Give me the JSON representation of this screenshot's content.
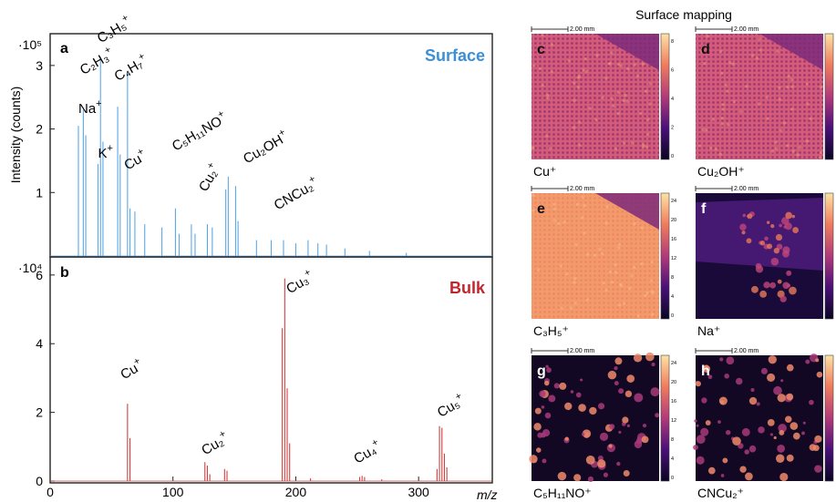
{
  "chart_data": [
    {
      "panel": "a",
      "type": "bar",
      "title": "Surface",
      "title_color": "#3a8fd6",
      "ylabel": "Intensity (counts)",
      "y_multiplier": "·10⁵",
      "ylim": [
        0,
        3.5
      ],
      "yticks": [
        1,
        2,
        3
      ],
      "xlim": [
        0,
        360
      ],
      "bar_color": "#5aa8e8",
      "peaks": [
        {
          "x": 23,
          "y": 2.05
        },
        {
          "x": 27,
          "y": 2.3
        },
        {
          "x": 29,
          "y": 1.9
        },
        {
          "x": 39,
          "y": 1.45
        },
        {
          "x": 41,
          "y": 3.1
        },
        {
          "x": 43,
          "y": 1.8
        },
        {
          "x": 55,
          "y": 2.35
        },
        {
          "x": 57,
          "y": 1.6
        },
        {
          "x": 63,
          "y": 2.9
        },
        {
          "x": 65,
          "y": 0.75
        },
        {
          "x": 69,
          "y": 0.7
        },
        {
          "x": 77,
          "y": 0.5
        },
        {
          "x": 91,
          "y": 0.45
        },
        {
          "x": 102,
          "y": 0.75
        },
        {
          "x": 105,
          "y": 0.35
        },
        {
          "x": 115,
          "y": 0.5
        },
        {
          "x": 118,
          "y": 0.35
        },
        {
          "x": 128,
          "y": 0.5
        },
        {
          "x": 132,
          "y": 0.45
        },
        {
          "x": 143,
          "y": 1.05
        },
        {
          "x": 145,
          "y": 1.25
        },
        {
          "x": 151,
          "y": 1.1
        },
        {
          "x": 153,
          "y": 0.55
        },
        {
          "x": 168,
          "y": 0.25
        },
        {
          "x": 180,
          "y": 0.25
        },
        {
          "x": 190,
          "y": 0.25
        },
        {
          "x": 200,
          "y": 0.2
        },
        {
          "x": 210,
          "y": 0.25
        },
        {
          "x": 218,
          "y": 0.2
        },
        {
          "x": 225,
          "y": 0.18
        },
        {
          "x": 240,
          "y": 0.12
        },
        {
          "x": 260,
          "y": 0.08
        },
        {
          "x": 290,
          "y": 0.05
        }
      ],
      "annotations": [
        {
          "base": "Na",
          "sub": "",
          "sup": "+",
          "x": 23,
          "y": 2.25,
          "rot": 0
        },
        {
          "base": "K",
          "sub": "",
          "sup": "+",
          "x": 39,
          "y": 1.55,
          "rot": 0
        },
        {
          "base": "C₂H₃",
          "sub": "",
          "sup": "+",
          "x": 27,
          "y": 2.85,
          "rot": -30
        },
        {
          "base": "C₃H₅",
          "sub": "",
          "sup": "+",
          "x": 41,
          "y": 3.35,
          "rot": -30
        },
        {
          "base": "C₄H₇",
          "sub": "",
          "sup": "+",
          "x": 55,
          "y": 2.75,
          "rot": -30
        },
        {
          "base": "Cu",
          "sub": "",
          "sup": "+",
          "x": 63,
          "y": 1.35,
          "rot": -30
        },
        {
          "base": "C₅H₁₁NO",
          "sub": "",
          "sup": "+",
          "x": 102,
          "y": 1.65,
          "rot": -30
        },
        {
          "base": "Cu₂",
          "sub": "",
          "sup": "+",
          "x": 127,
          "y": 1.0,
          "rot": -60
        },
        {
          "base": "Cu₂OH",
          "sub": "",
          "sup": "+",
          "x": 160,
          "y": 1.45,
          "rot": -30
        },
        {
          "base": "CNCu₂",
          "sub": "",
          "sup": "+",
          "x": 185,
          "y": 0.72,
          "rot": -30
        }
      ]
    },
    {
      "panel": "b",
      "type": "bar",
      "title": "Bulk",
      "title_color": "#c0262c",
      "y_multiplier": "·10⁴",
      "xlabel": "m/z",
      "ylim": [
        0,
        6.5
      ],
      "yticks": [
        0,
        2,
        4,
        6
      ],
      "xlim": [
        0,
        360
      ],
      "xticks": [
        0,
        100,
        200,
        300
      ],
      "bar_color": "#d04040",
      "peaks": [
        {
          "x": 63,
          "y": 2.25
        },
        {
          "x": 65,
          "y": 1.25
        },
        {
          "x": 126,
          "y": 0.55
        },
        {
          "x": 128,
          "y": 0.45
        },
        {
          "x": 130,
          "y": 0.2
        },
        {
          "x": 142,
          "y": 0.35
        },
        {
          "x": 144,
          "y": 0.3
        },
        {
          "x": 189,
          "y": 4.45
        },
        {
          "x": 191,
          "y": 5.9
        },
        {
          "x": 193,
          "y": 2.7
        },
        {
          "x": 195,
          "y": 1.1
        },
        {
          "x": 212,
          "y": 0.08
        },
        {
          "x": 252,
          "y": 0.12
        },
        {
          "x": 254,
          "y": 0.15
        },
        {
          "x": 256,
          "y": 0.12
        },
        {
          "x": 270,
          "y": 0.05
        },
        {
          "x": 315,
          "y": 0.35
        },
        {
          "x": 317,
          "y": 1.6
        },
        {
          "x": 319,
          "y": 1.55
        },
        {
          "x": 321,
          "y": 0.8
        },
        {
          "x": 323,
          "y": 0.4
        }
      ],
      "annotations": [
        {
          "base": "Cu",
          "sub": "",
          "sup": "+",
          "x": 60,
          "y": 2.95,
          "rot": -30
        },
        {
          "base": "Cu₂",
          "sub": "",
          "sup": "+",
          "x": 126,
          "y": 0.75,
          "rot": -30
        },
        {
          "base": "Cu₃",
          "sub": "",
          "sup": "+",
          "x": 195,
          "y": 5.45,
          "rot": -30
        },
        {
          "base": "Cu₄",
          "sub": "",
          "sup": "+",
          "x": 250,
          "y": 0.5,
          "rot": -30
        },
        {
          "base": "Cu₅",
          "sub": "",
          "sup": "+",
          "x": 318,
          "y": 1.85,
          "rot": -30
        }
      ]
    }
  ],
  "mapping": {
    "header": "Surface mapping",
    "scale_label": "2.00 mm",
    "panels": [
      {
        "letter": "c",
        "label": "Cu⁺",
        "style": "bright",
        "colorbar_ticks": [
          "8",
          "6",
          "4",
          "2",
          "0"
        ]
      },
      {
        "letter": "d",
        "label": "Cu₂OH⁺",
        "style": "bright",
        "colorbar_ticks": [
          "",
          "",
          "",
          "",
          ""
        ]
      },
      {
        "letter": "e",
        "label": "C₃H₅⁺",
        "style": "veryBright",
        "colorbar_ticks": [
          "24",
          "20",
          "16",
          "12",
          "8",
          "4",
          "0"
        ]
      },
      {
        "letter": "f",
        "label": "Na⁺",
        "style": "dark",
        "colorbar_ticks": [
          "",
          "",
          "",
          "",
          ""
        ]
      },
      {
        "letter": "g",
        "label": "C₅H₁₁NO⁺",
        "style": "dots",
        "colorbar_ticks": [
          "24",
          "20",
          "16",
          "12",
          "8",
          "4",
          "0"
        ]
      },
      {
        "letter": "h",
        "label": "CNCu₂⁺",
        "style": "dots",
        "colorbar_ticks": [
          "",
          "",
          "",
          "",
          ""
        ]
      }
    ]
  }
}
